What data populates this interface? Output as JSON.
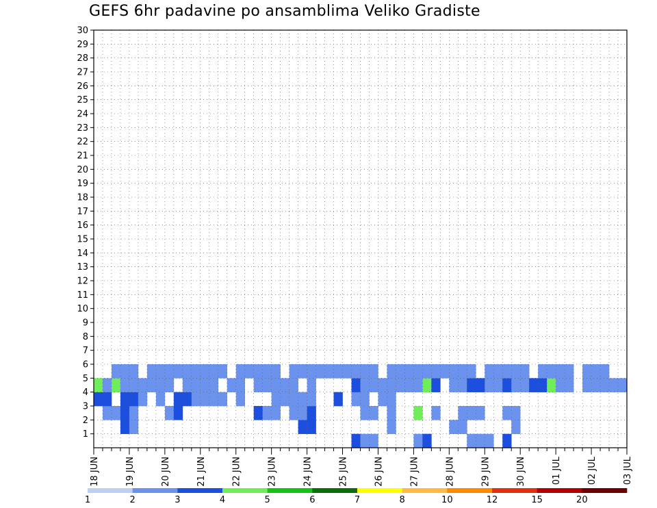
{
  "title": "GEFS 6hr padavine po ansamblima Veliko Gradiste",
  "chart_data": {
    "type": "heatmap",
    "title": "GEFS 6hr padavine po ansamblima Veliko Gradiste",
    "xlabel": "",
    "ylabel": "",
    "x_tick_labels": [
      "18 JUN",
      "19 JUN",
      "20 JUN",
      "21 JUN",
      "22 JUN",
      "23 JUN",
      "24 JUN",
      "25 JUN",
      "26 JUN",
      "27 JUN",
      "28 JUN",
      "29 JUN",
      "30 JUN",
      "01 JUL",
      "02 JUL",
      "03 JUL"
    ],
    "y_tick_labels": [
      "1",
      "2",
      "3",
      "4",
      "5",
      "6",
      "7",
      "8",
      "9",
      "10",
      "11",
      "12",
      "13",
      "14",
      "15",
      "16",
      "17",
      "18",
      "19",
      "20",
      "21",
      "22",
      "23",
      "24",
      "25",
      "26",
      "27",
      "28",
      "29",
      "30"
    ],
    "y_range": [
      0,
      30
    ],
    "steps_per_day": 4,
    "n_steps": 60,
    "grid": true,
    "legend": {
      "placement": "bottom",
      "colors": [
        "#bcd0f6",
        "#6b93ee",
        "#1c4fde",
        "#70ee5a",
        "#14c414",
        "#0b6e0b",
        "#ffff00",
        "#ffbb44",
        "#ff8800",
        "#e03010",
        "#b00000",
        "#6a0000"
      ],
      "labels": [
        "1",
        "2",
        "3",
        "4",
        "5",
        "6",
        "7",
        "8",
        "10",
        "12",
        "15",
        "20"
      ]
    },
    "cells": [
      [
        29,
        0,
        2
      ],
      [
        30,
        0,
        1
      ],
      [
        31,
        0,
        1
      ],
      [
        36,
        0,
        1
      ],
      [
        37,
        0,
        2
      ],
      [
        42,
        0,
        1
      ],
      [
        43,
        0,
        1
      ],
      [
        44,
        0,
        1
      ],
      [
        46,
        0,
        2
      ],
      [
        3,
        1,
        2
      ],
      [
        4,
        1,
        1
      ],
      [
        23,
        1,
        2
      ],
      [
        24,
        1,
        2
      ],
      [
        33,
        1,
        1
      ],
      [
        40,
        1,
        1
      ],
      [
        41,
        1,
        1
      ],
      [
        47,
        1,
        1
      ],
      [
        1,
        2,
        1
      ],
      [
        2,
        2,
        1
      ],
      [
        3,
        2,
        2
      ],
      [
        4,
        2,
        1
      ],
      [
        8,
        2,
        1
      ],
      [
        9,
        2,
        2
      ],
      [
        18,
        2,
        2
      ],
      [
        19,
        2,
        1
      ],
      [
        20,
        2,
        1
      ],
      [
        22,
        2,
        1
      ],
      [
        23,
        2,
        1
      ],
      [
        24,
        2,
        2
      ],
      [
        30,
        2,
        1
      ],
      [
        31,
        2,
        1
      ],
      [
        33,
        2,
        1
      ],
      [
        36,
        2,
        3
      ],
      [
        38,
        2,
        1
      ],
      [
        41,
        2,
        1
      ],
      [
        42,
        2,
        1
      ],
      [
        43,
        2,
        1
      ],
      [
        46,
        2,
        1
      ],
      [
        47,
        2,
        1
      ],
      [
        0,
        3,
        2
      ],
      [
        1,
        3,
        2
      ],
      [
        3,
        3,
        2
      ],
      [
        4,
        3,
        2
      ],
      [
        5,
        3,
        1
      ],
      [
        7,
        3,
        1
      ],
      [
        9,
        3,
        2
      ],
      [
        10,
        3,
        2
      ],
      [
        11,
        3,
        1
      ],
      [
        12,
        3,
        1
      ],
      [
        13,
        3,
        1
      ],
      [
        14,
        3,
        1
      ],
      [
        16,
        3,
        1
      ],
      [
        20,
        3,
        1
      ],
      [
        21,
        3,
        1
      ],
      [
        22,
        3,
        1
      ],
      [
        23,
        3,
        1
      ],
      [
        24,
        3,
        1
      ],
      [
        27,
        3,
        2
      ],
      [
        29,
        3,
        1
      ],
      [
        30,
        3,
        1
      ],
      [
        32,
        3,
        1
      ],
      [
        33,
        3,
        1
      ],
      [
        0,
        4,
        3
      ],
      [
        1,
        4,
        1
      ],
      [
        2,
        4,
        3
      ],
      [
        3,
        4,
        1
      ],
      [
        4,
        4,
        1
      ],
      [
        5,
        4,
        1
      ],
      [
        6,
        4,
        1
      ],
      [
        7,
        4,
        1
      ],
      [
        8,
        4,
        1
      ],
      [
        10,
        4,
        1
      ],
      [
        11,
        4,
        1
      ],
      [
        12,
        4,
        1
      ],
      [
        13,
        4,
        1
      ],
      [
        15,
        4,
        1
      ],
      [
        16,
        4,
        1
      ],
      [
        18,
        4,
        1
      ],
      [
        19,
        4,
        1
      ],
      [
        20,
        4,
        1
      ],
      [
        21,
        4,
        1
      ],
      [
        22,
        4,
        1
      ],
      [
        24,
        4,
        1
      ],
      [
        29,
        4,
        2
      ],
      [
        30,
        4,
        1
      ],
      [
        31,
        4,
        1
      ],
      [
        32,
        4,
        1
      ],
      [
        33,
        4,
        1
      ],
      [
        34,
        4,
        1
      ],
      [
        35,
        4,
        1
      ],
      [
        36,
        4,
        1
      ],
      [
        37,
        4,
        3
      ],
      [
        38,
        4,
        2
      ],
      [
        40,
        4,
        1
      ],
      [
        41,
        4,
        1
      ],
      [
        42,
        4,
        2
      ],
      [
        43,
        4,
        2
      ],
      [
        44,
        4,
        1
      ],
      [
        45,
        4,
        1
      ],
      [
        46,
        4,
        2
      ],
      [
        47,
        4,
        1
      ],
      [
        48,
        4,
        1
      ],
      [
        49,
        4,
        2
      ],
      [
        50,
        4,
        2
      ],
      [
        51,
        4,
        3
      ],
      [
        52,
        4,
        1
      ],
      [
        53,
        4,
        1
      ],
      [
        55,
        4,
        1
      ],
      [
        56,
        4,
        1
      ],
      [
        57,
        4,
        1
      ],
      [
        58,
        4,
        1
      ],
      [
        59,
        4,
        1
      ],
      [
        2,
        5,
        1
      ],
      [
        3,
        5,
        1
      ],
      [
        4,
        5,
        1
      ],
      [
        6,
        5,
        1
      ],
      [
        7,
        5,
        1
      ],
      [
        8,
        5,
        1
      ],
      [
        9,
        5,
        1
      ],
      [
        10,
        5,
        1
      ],
      [
        11,
        5,
        1
      ],
      [
        12,
        5,
        1
      ],
      [
        13,
        5,
        1
      ],
      [
        14,
        5,
        1
      ],
      [
        16,
        5,
        1
      ],
      [
        17,
        5,
        1
      ],
      [
        18,
        5,
        1
      ],
      [
        19,
        5,
        1
      ],
      [
        20,
        5,
        1
      ],
      [
        22,
        5,
        1
      ],
      [
        23,
        5,
        1
      ],
      [
        24,
        5,
        1
      ],
      [
        25,
        5,
        1
      ],
      [
        26,
        5,
        1
      ],
      [
        27,
        5,
        1
      ],
      [
        28,
        5,
        1
      ],
      [
        29,
        5,
        1
      ],
      [
        30,
        5,
        1
      ],
      [
        31,
        5,
        1
      ],
      [
        33,
        5,
        1
      ],
      [
        34,
        5,
        1
      ],
      [
        35,
        5,
        1
      ],
      [
        36,
        5,
        1
      ],
      [
        37,
        5,
        1
      ],
      [
        38,
        5,
        1
      ],
      [
        39,
        5,
        1
      ],
      [
        40,
        5,
        1
      ],
      [
        41,
        5,
        1
      ],
      [
        42,
        5,
        1
      ],
      [
        44,
        5,
        1
      ],
      [
        45,
        5,
        1
      ],
      [
        46,
        5,
        1
      ],
      [
        47,
        5,
        1
      ],
      [
        48,
        5,
        1
      ],
      [
        50,
        5,
        1
      ],
      [
        51,
        5,
        1
      ],
      [
        52,
        5,
        1
      ],
      [
        53,
        5,
        1
      ],
      [
        55,
        5,
        1
      ],
      [
        56,
        5,
        1
      ],
      [
        57,
        5,
        1
      ]
    ]
  }
}
